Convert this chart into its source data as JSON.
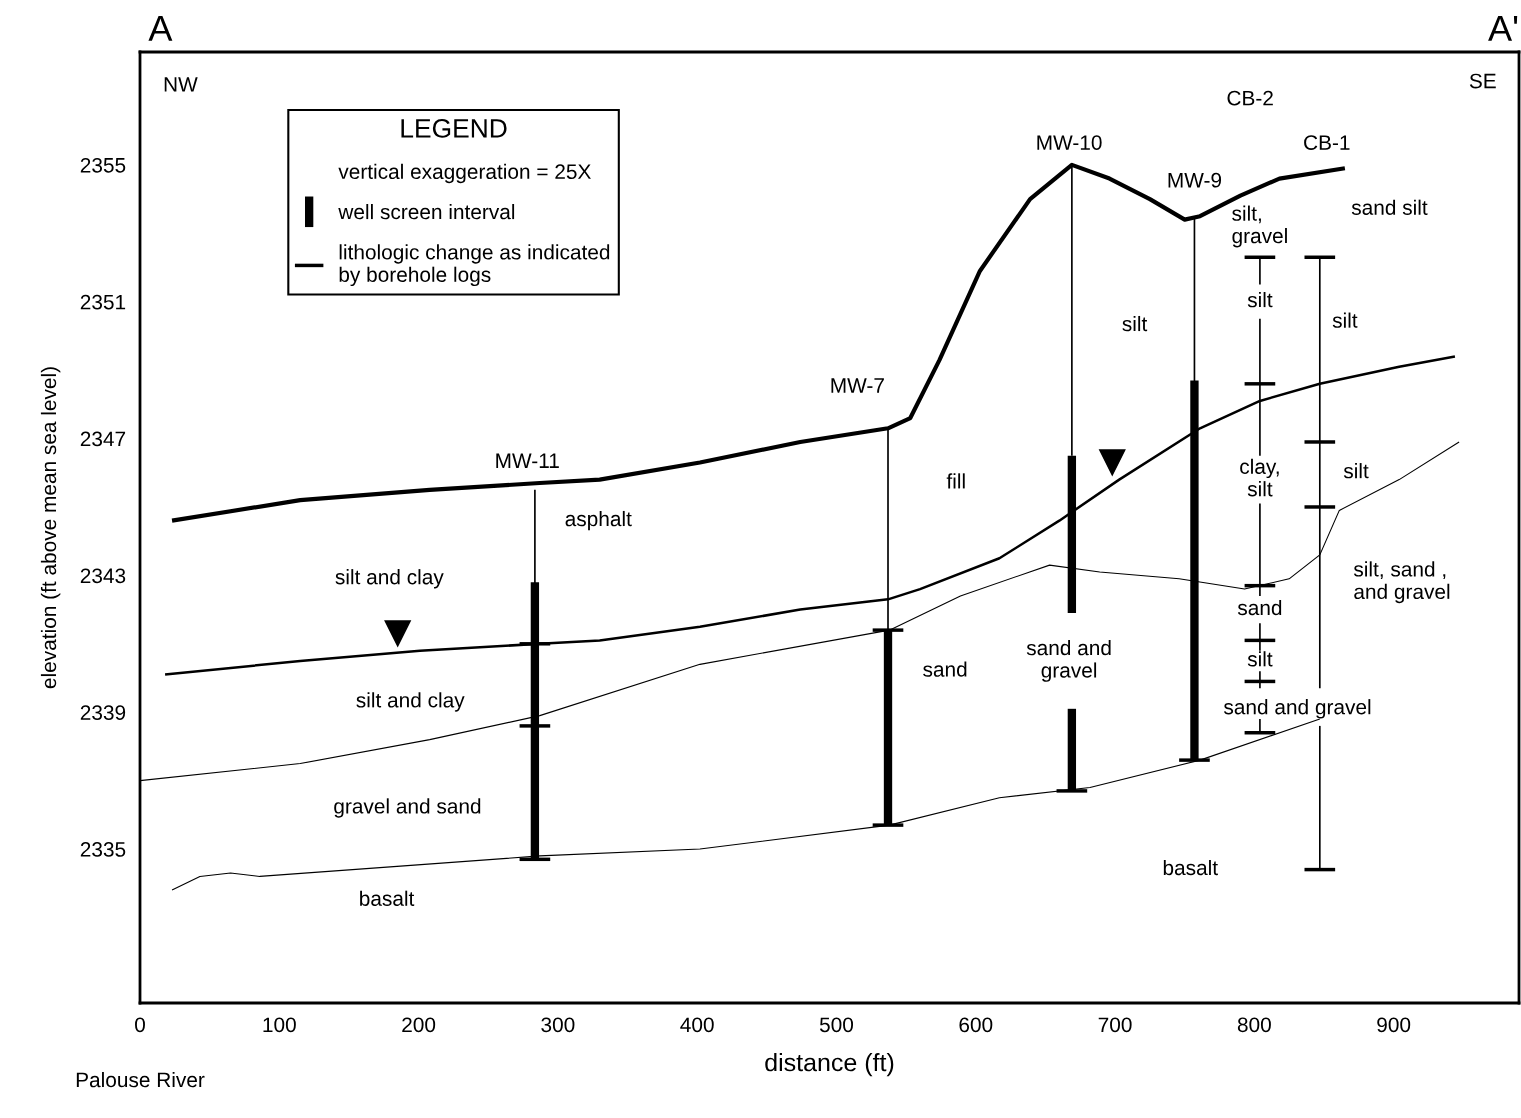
{
  "chart_data": {
    "type": "line",
    "xlabel": "distance (ft)",
    "ylabel": "elevation (ft above mean sea level)",
    "xlim": [
      0,
      990
    ],
    "ylim": [
      2330.5,
      2358.3
    ],
    "xticks": [
      0,
      100,
      200,
      300,
      400,
      500,
      600,
      700,
      800,
      900
    ],
    "yticks": [
      2335,
      2339,
      2343,
      2347,
      2351,
      2355
    ],
    "grid": false,
    "legend": "top left",
    "legend_title": "LEGEND",
    "series": [
      {
        "color": "#000000",
        "x": [
          23,
          115,
          208,
          287,
          330,
          402,
          474,
          537,
          553,
          574,
          603,
          639,
          669,
          696,
          725,
          750,
          761,
          790,
          818,
          865
        ],
        "values": [
          2344.6,
          2345.2,
          2345.5,
          2345.7,
          2345.8,
          2346.3,
          2346.9,
          2347.3,
          2347.6,
          2349.3,
          2351.9,
          2354.0,
          2355.0,
          2354.6,
          2354.0,
          2353.4,
          2353.5,
          2354.1,
          2354.6,
          2354.9
        ]
      },
      {
        "color": "#000000",
        "x": [
          18,
          115,
          201,
          287,
          330,
          402,
          474,
          537,
          560,
          617,
          660,
          703,
          761,
          804,
          847,
          904,
          944
        ],
        "values": [
          2340.1,
          2340.5,
          2340.8,
          2341.0,
          2341.1,
          2341.5,
          2342.0,
          2342.3,
          2342.6,
          2343.5,
          2344.6,
          2345.8,
          2347.3,
          2348.1,
          2348.6,
          2349.1,
          2349.4
        ]
      },
      {
        "color": "#000000",
        "x": [
          0,
          115,
          208,
          287,
          402,
          538,
          589,
          653,
          689,
          746,
          793,
          825,
          847,
          861,
          904,
          947
        ],
        "values": [
          2337.0,
          2337.5,
          2338.2,
          2338.9,
          2340.4,
          2341.4,
          2342.4,
          2343.3,
          2343.1,
          2342.9,
          2342.6,
          2342.9,
          2343.6,
          2344.9,
          2345.8,
          2346.9
        ]
      },
      {
        "color": "#000000",
        "x": [
          23,
          43,
          65,
          86,
          187,
          287,
          402,
          538,
          617,
          682,
          761,
          847
        ],
        "values": [
          2333.8,
          2334.2,
          2334.3,
          2334.2,
          2334.5,
          2334.8,
          2335.0,
          2335.7,
          2336.5,
          2336.8,
          2337.6,
          2338.8
        ]
      },
      {
        "color": "#000000",
        "x": [
          283.5,
          283.5
        ],
        "values": [
          2345.5,
          2334.7
        ]
      },
      {
        "color": "#000000",
        "x": [
          537,
          537
        ],
        "values": [
          2347.3,
          2335.7
        ]
      },
      {
        "color": "#000000",
        "x": [
          669,
          669
        ],
        "values": [
          2355.0,
          2346.5
        ]
      },
      {
        "color": "#000000",
        "x": [
          757,
          757
        ],
        "values": [
          2353.5,
          2337.6
        ]
      },
      {
        "color": "#000000",
        "x": [
          804,
          804
        ],
        "values": [
          2352.3,
          2351.5
        ]
      },
      {
        "color": "#000000",
        "x": [
          804,
          804
        ],
        "values": [
          2350.5,
          2346.5
        ]
      },
      {
        "color": "#000000",
        "x": [
          804,
          804
        ],
        "values": [
          2345.1,
          2342.4
        ]
      },
      {
        "color": "#000000",
        "x": [
          804,
          804
        ],
        "values": [
          2341.6,
          2340.8
        ]
      },
      {
        "color": "#000000",
        "x": [
          804,
          804
        ],
        "values": [
          2340.2,
          2339.7
        ]
      },
      {
        "color": "#000000",
        "x": [
          804,
          804
        ],
        "values": [
          2338.8,
          2338.4
        ]
      },
      {
        "color": "#000000",
        "x": [
          847,
          847
        ],
        "values": [
          2352.3,
          2339.7
        ]
      },
      {
        "color": "#000000",
        "x": [
          847,
          847
        ],
        "values": [
          2338.6,
          2334.4
        ]
      },
      {
        "name": "well screen interval",
        "color": "#000000",
        "x": [
          283.5,
          283.5
        ],
        "values": [
          2342.8,
          2334.7
        ]
      },
      {
        "color": "#000000",
        "x": [
          537,
          537
        ],
        "values": [
          2341.4,
          2335.7
        ]
      },
      {
        "color": "#000000",
        "x": [
          669,
          669
        ],
        "values": [
          2346.5,
          2341.9
        ]
      },
      {
        "color": "#000000",
        "x": [
          669,
          669
        ],
        "values": [
          2339.1,
          2336.7
        ]
      },
      {
        "color": "#000000",
        "x": [
          757,
          757
        ],
        "values": [
          2348.7,
          2337.6
        ]
      },
      {
        "name": "lithologic change as indicated\nby borehole logs",
        "color": "#000000",
        "x": [
          272.5,
          294.5
        ],
        "values": [
          2341.0,
          2341.0
        ]
      },
      {
        "color": "#000000",
        "x": [
          272.5,
          294.5
        ],
        "values": [
          2338.6,
          2338.6
        ]
      },
      {
        "color": "#000000",
        "x": [
          272.5,
          294.5
        ],
        "values": [
          2334.7,
          2334.7
        ]
      },
      {
        "color": "#000000",
        "x": [
          526,
          548
        ],
        "values": [
          2341.4,
          2341.4
        ]
      },
      {
        "color": "#000000",
        "x": [
          526,
          548
        ],
        "values": [
          2335.7,
          2335.7
        ]
      },
      {
        "color": "#000000",
        "x": [
          658,
          680
        ],
        "values": [
          2336.7,
          2336.7
        ]
      },
      {
        "color": "#000000",
        "x": [
          746,
          768
        ],
        "values": [
          2337.6,
          2337.6
        ]
      },
      {
        "color": "#000000",
        "x": [
          793,
          815
        ],
        "values": [
          2352.3,
          2352.3
        ]
      },
      {
        "color": "#000000",
        "x": [
          793,
          815
        ],
        "values": [
          2348.6,
          2348.6
        ]
      },
      {
        "color": "#000000",
        "x": [
          793,
          815
        ],
        "values": [
          2342.7,
          2342.7
        ]
      },
      {
        "color": "#000000",
        "x": [
          793,
          815
        ],
        "values": [
          2341.1,
          2341.1
        ]
      },
      {
        "color": "#000000",
        "x": [
          793,
          815
        ],
        "values": [
          2339.9,
          2339.9
        ]
      },
      {
        "color": "#000000",
        "x": [
          793,
          815
        ],
        "values": [
          2338.4,
          2338.4
        ]
      },
      {
        "color": "#000000",
        "x": [
          836,
          858
        ],
        "values": [
          2352.3,
          2352.3
        ]
      },
      {
        "color": "#000000",
        "x": [
          836,
          858
        ],
        "values": [
          2346.9,
          2346.9
        ]
      },
      {
        "color": "#000000",
        "x": [
          836,
          858
        ],
        "values": [
          2345.0,
          2345.0
        ]
      },
      {
        "color": "#000000",
        "x": [
          836,
          858
        ],
        "values": [
          2334.4,
          2334.4
        ]
      },
      {
        "type": "scatter",
        "marker": "triangle",
        "color": "#000000",
        "x": [
          185,
          698
        ],
        "values": [
          2341.3,
          2346.3
        ]
      }
    ],
    "annotations": [
      "vertical exaggeration = 25X",
      "A",
      "A'",
      "Palouse River",
      "NW",
      "SE",
      "MW-11",
      "MW-7",
      "MW-10",
      "MW-9",
      "CB-2",
      "CB-1",
      "asphalt",
      "silt and clay",
      "silt and clay",
      "gravel and sand",
      "basalt",
      "fill",
      "sand",
      "sand and\ngravel",
      "silt",
      "silt,\ngravel",
      "silt",
      "clay,\nsilt",
      "sand",
      "silt",
      "sand and gravel",
      "basalt",
      "sand silt",
      "silt",
      "silt",
      "silt, sand ,\nand gravel"
    ]
  }
}
